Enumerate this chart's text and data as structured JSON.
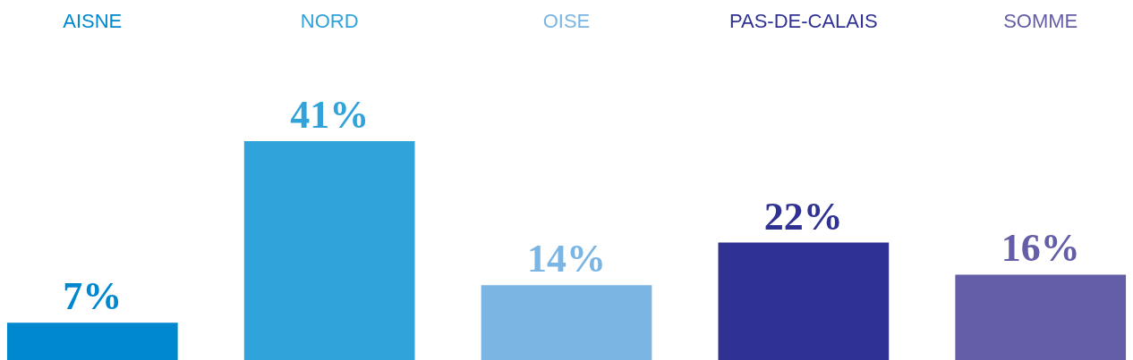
{
  "chart_data": {
    "type": "bar",
    "categories": [
      "AISNE",
      "NORD",
      "OISE",
      "PAS-DE-CALAIS",
      "SOMME"
    ],
    "values": [
      7,
      41,
      14,
      22,
      16
    ],
    "value_labels": [
      "7%",
      "41%",
      "14%",
      "22%",
      "16%"
    ],
    "colors": [
      "#0088cf",
      "#2fa3da",
      "#7ab5e3",
      "#303293",
      "#645ea9"
    ]
  }
}
